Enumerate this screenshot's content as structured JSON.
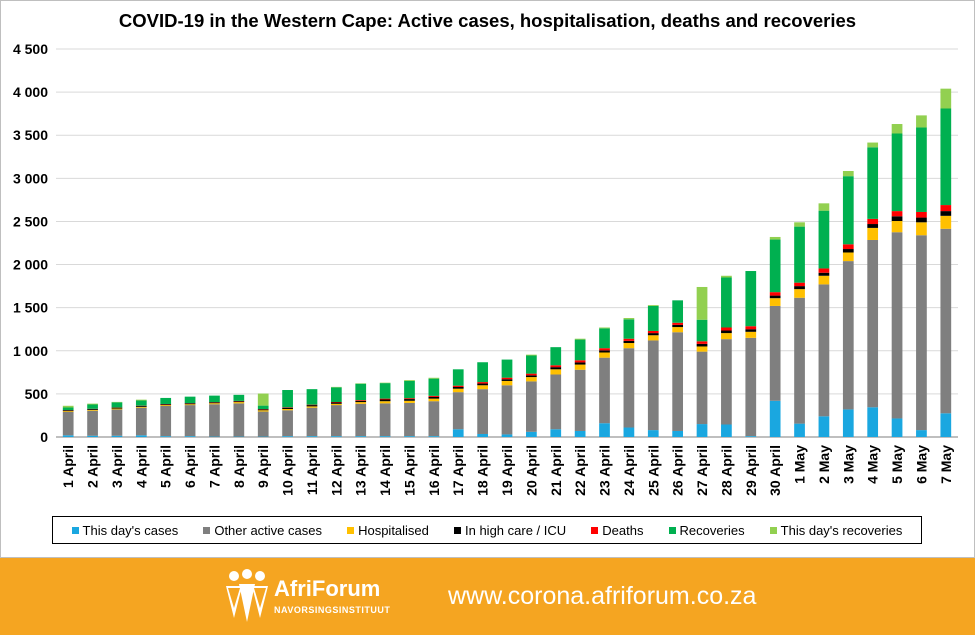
{
  "chart_data": {
    "type": "bar",
    "stacked": true,
    "title": "COVID-19 in the Western Cape: Active cases, hospitalisation, deaths and recoveries",
    "xlabel": "",
    "ylabel": "",
    "ylim": [
      0,
      4500
    ],
    "yticks": [
      0,
      500,
      1000,
      1500,
      2000,
      2500,
      3000,
      3500,
      4000,
      4500
    ],
    "ytick_labels": [
      "0",
      "500",
      "1 000",
      "1 500",
      "2 000",
      "2 500",
      "3 000",
      "3 500",
      "4 000",
      "4 500"
    ],
    "grid": true,
    "legend_position": "bottom",
    "categories": [
      "1 April",
      "2 April",
      "3 April",
      "4 April",
      "5 April",
      "6 April",
      "7 April",
      "8 April",
      "9 April",
      "10 April",
      "11 April",
      "12 April",
      "13 April",
      "14 April",
      "15 April",
      "16 April",
      "17 April",
      "18 April",
      "19 April",
      "20 April",
      "21 April",
      "22 April",
      "23 April",
      "24 April",
      "25 April",
      "26 April",
      "27 April",
      "28 April",
      "29 April",
      "30 April",
      "1 May",
      "2 May",
      "3 May",
      "4 May",
      "5 May",
      "6 May",
      "7 May"
    ],
    "series": [
      {
        "name": "This day's cases",
        "color": "#1aa7e0",
        "values": [
          20,
          15,
          15,
          20,
          10,
          10,
          5,
          5,
          5,
          10,
          10,
          10,
          10,
          10,
          10,
          10,
          90,
          35,
          30,
          60,
          90,
          70,
          160,
          110,
          80,
          70,
          150,
          145,
          10,
          420,
          155,
          240,
          320,
          345,
          215,
          80,
          275
        ]
      },
      {
        "name": "Other active cases",
        "color": "#7f7f7f",
        "values": [
          270,
          290,
          305,
          320,
          350,
          360,
          375,
          385,
          290,
          300,
          330,
          360,
          375,
          380,
          385,
          405,
          430,
          520,
          570,
          585,
          635,
          710,
          760,
          920,
          1040,
          1145,
          840,
          990,
          1140,
          1100,
          1460,
          1530,
          1720,
          1940,
          2160,
          2260,
          2140
        ]
      },
      {
        "name": "Hospitalised",
        "color": "#ffc000",
        "values": [
          10,
          10,
          10,
          10,
          10,
          10,
          12,
          15,
          15,
          15,
          15,
          15,
          20,
          25,
          25,
          30,
          40,
          45,
          50,
          50,
          60,
          60,
          60,
          60,
          60,
          60,
          60,
          70,
          70,
          90,
          100,
          100,
          100,
          140,
          130,
          150,
          150
        ]
      },
      {
        "name": "In high care / ICU",
        "color": "#000000",
        "values": [
          10,
          10,
          10,
          10,
          10,
          10,
          10,
          10,
          10,
          15,
          15,
          15,
          15,
          20,
          20,
          20,
          20,
          20,
          20,
          20,
          25,
          25,
          25,
          25,
          25,
          25,
          30,
          30,
          30,
          30,
          35,
          35,
          40,
          45,
          55,
          55,
          55
        ]
      },
      {
        "name": "Deaths",
        "color": "#ff0000",
        "values": [
          2,
          2,
          2,
          3,
          3,
          3,
          3,
          4,
          4,
          5,
          5,
          6,
          8,
          10,
          10,
          12,
          15,
          17,
          18,
          20,
          22,
          25,
          25,
          25,
          25,
          25,
          30,
          35,
          35,
          40,
          40,
          50,
          55,
          60,
          60,
          65,
          70
        ]
      },
      {
        "name": "Recoveries",
        "color": "#00b050",
        "values": [
          30,
          50,
          60,
          60,
          70,
          75,
          75,
          70,
          40,
          200,
          180,
          170,
          190,
          180,
          200,
          200,
          190,
          230,
          210,
          210,
          210,
          240,
          230,
          225,
          290,
          260,
          250,
          580,
          640,
          610,
          650,
          670,
          790,
          830,
          900,
          980,
          1120
        ]
      },
      {
        "name": "This day's recoveries",
        "color": "#92d050",
        "values": [
          20,
          10,
          5,
          10,
          0,
          0,
          0,
          0,
          140,
          0,
          0,
          5,
          5,
          5,
          10,
          10,
          0,
          0,
          0,
          10,
          0,
          10,
          10,
          15,
          10,
          0,
          380,
          20,
          0,
          30,
          50,
          85,
          60,
          55,
          110,
          140,
          230
        ]
      }
    ]
  },
  "footer": {
    "logo_name": "AfriForum",
    "logo_sub": "NAVORSINGSINSTITUUT",
    "url": "www.corona.afriforum.co.za",
    "background_color": "#f5a521"
  }
}
